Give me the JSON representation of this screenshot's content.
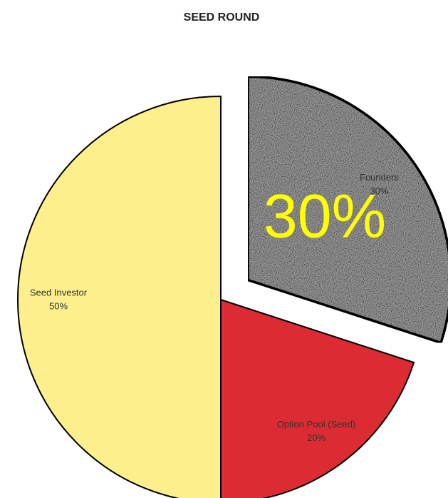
{
  "chart_data": {
    "type": "pie",
    "title": "SEED ROUND",
    "categories": [
      "Founders",
      "Option Pool (Seed)",
      "Seed Investor"
    ],
    "values": [
      30,
      20,
      50
    ],
    "value_labels": [
      "30%",
      "20%",
      "50%"
    ],
    "colors": [
      "#9c9c9c",
      "#dc2b33",
      "#fcef8c"
    ],
    "textures": [
      "noise",
      null,
      null
    ],
    "exploded": [
      true,
      false,
      false
    ],
    "annotation": "30%",
    "annotation_color": "#ffff00"
  }
}
